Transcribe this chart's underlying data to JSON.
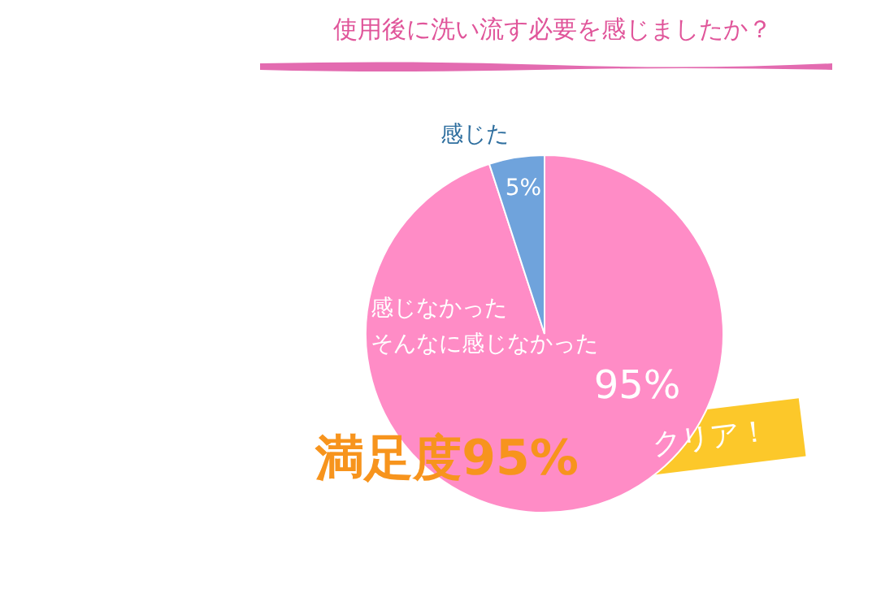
{
  "chart_data": {
    "type": "pie",
    "title": "使用後に洗い流す必要を感じましたか？",
    "categories": [
      "感じなかったそんなに感じなかった",
      "感じた"
    ],
    "values": [
      95,
      5
    ],
    "colors": [
      "#ff8cc6",
      "#6fa3dc"
    ],
    "value_labels": [
      "95%",
      "5%"
    ],
    "annotations": [
      "満足度95%",
      "クリア！"
    ],
    "legend": false
  }
}
